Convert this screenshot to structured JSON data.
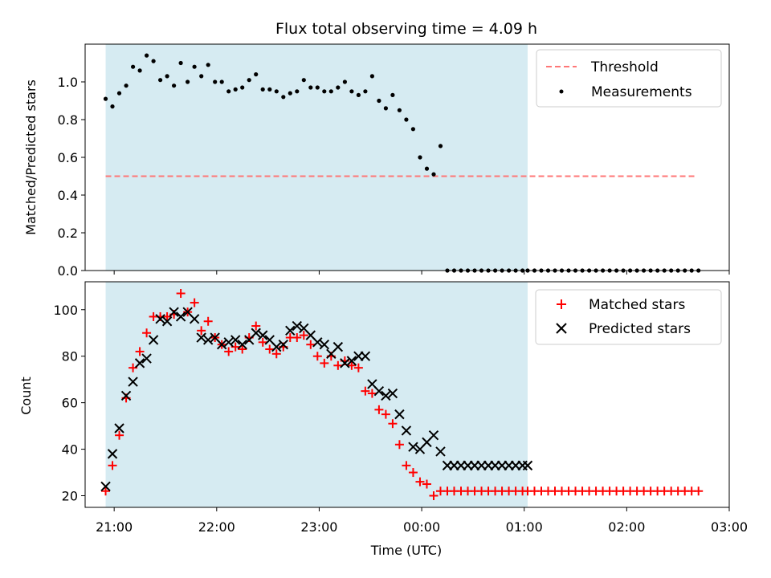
{
  "chart_data": [
    {
      "type": "scatter",
      "title": "Flux total observing time = 4.09 h",
      "xlabel": "",
      "ylabel": "Matched/Predicted stars",
      "xlim": [
        "20:43",
        "03:00"
      ],
      "ylim": [
        0,
        1.2
      ],
      "yticks": [
        "0.0",
        "0.2",
        "0.4",
        "0.6",
        "0.8",
        "1.0"
      ],
      "shaded_span": [
        "20:55",
        "01:02"
      ],
      "threshold": {
        "name": "Threshold",
        "value": 0.5,
        "range": [
          "20:55",
          "02:41"
        ],
        "color": "#ff7777"
      },
      "legend": {
        "position": "top-right",
        "entries": [
          "Threshold",
          "Measurements"
        ]
      },
      "series": [
        {
          "name": "Measurements",
          "color": "#000000",
          "x": [
            "20:55",
            "20:59",
            "21:03",
            "21:07",
            "21:11",
            "21:15",
            "21:19",
            "21:23",
            "21:27",
            "21:31",
            "21:35",
            "21:39",
            "21:43",
            "21:47",
            "21:51",
            "21:55",
            "21:59",
            "22:03",
            "22:07",
            "22:11",
            "22:15",
            "22:19",
            "22:23",
            "22:27",
            "22:31",
            "22:35",
            "22:39",
            "22:43",
            "22:47",
            "22:51",
            "22:55",
            "22:59",
            "23:03",
            "23:07",
            "23:11",
            "23:15",
            "23:19",
            "23:23",
            "23:27",
            "23:31",
            "23:35",
            "23:39",
            "23:43",
            "23:47",
            "23:51",
            "23:55",
            "23:59",
            "00:03",
            "00:07",
            "00:11",
            "00:15",
            "00:19",
            "00:23",
            "00:27",
            "00:31",
            "00:35",
            "00:39",
            "00:43",
            "00:47",
            "00:51",
            "00:55",
            "00:59",
            "01:02",
            "01:06",
            "01:10",
            "01:14",
            "01:18",
            "01:22",
            "01:26",
            "01:30",
            "01:34",
            "01:38",
            "01:42",
            "01:46",
            "01:50",
            "01:54",
            "01:58",
            "02:02",
            "02:06",
            "02:10",
            "02:14",
            "02:18",
            "02:22",
            "02:26",
            "02:30",
            "02:34",
            "02:38",
            "02:42"
          ],
          "y": [
            0.91,
            0.87,
            0.94,
            0.98,
            1.08,
            1.06,
            1.14,
            1.11,
            1.01,
            1.03,
            0.98,
            1.1,
            1.0,
            1.08,
            1.03,
            1.09,
            1.0,
            1.0,
            0.95,
            0.96,
            0.97,
            1.01,
            1.04,
            0.96,
            0.96,
            0.95,
            0.92,
            0.94,
            0.95,
            1.01,
            0.97,
            0.97,
            0.95,
            0.95,
            0.97,
            1.0,
            0.95,
            0.93,
            0.95,
            1.03,
            0.9,
            0.86,
            0.93,
            0.85,
            0.8,
            0.75,
            0.6,
            0.54,
            0.51,
            0.66,
            0.0,
            0.0,
            0.0,
            0.0,
            0.0,
            0.0,
            0.0,
            0.0,
            0.0,
            0.0,
            0.0,
            0.0,
            0.0,
            0.0,
            0.0,
            0.0,
            0.0,
            0.0,
            0.0,
            0.0,
            0.0,
            0.0,
            0.0,
            0.0,
            0.0,
            0.0,
            0.0,
            0.0,
            0.0,
            0.0,
            0.0,
            0.0,
            0.0,
            0.0,
            0.0,
            0.0,
            0.0,
            0.0
          ]
        }
      ]
    },
    {
      "type": "scatter",
      "title": "",
      "xlabel": "Time (UTC)",
      "ylabel": "Count",
      "xlim": [
        "20:43",
        "03:00"
      ],
      "ylim": [
        15,
        112
      ],
      "xticks": [
        "21:00",
        "22:00",
        "23:00",
        "00:00",
        "01:00",
        "02:00",
        "03:00"
      ],
      "yticks": [
        "20",
        "40",
        "60",
        "80",
        "100"
      ],
      "shaded_span": [
        "20:55",
        "01:02"
      ],
      "legend": {
        "position": "top-right",
        "entries": [
          "Matched stars",
          "Predicted stars"
        ]
      },
      "series": [
        {
          "name": "Matched stars",
          "marker": "+",
          "color": "#ff0000",
          "x": [
            "20:55",
            "20:59",
            "21:03",
            "21:07",
            "21:11",
            "21:15",
            "21:19",
            "21:23",
            "21:27",
            "21:31",
            "21:35",
            "21:39",
            "21:43",
            "21:47",
            "21:51",
            "21:55",
            "21:59",
            "22:03",
            "22:07",
            "22:11",
            "22:15",
            "22:19",
            "22:23",
            "22:27",
            "22:31",
            "22:35",
            "22:39",
            "22:43",
            "22:47",
            "22:51",
            "22:55",
            "22:59",
            "23:03",
            "23:07",
            "23:11",
            "23:15",
            "23:19",
            "23:23",
            "23:27",
            "23:31",
            "23:35",
            "23:39",
            "23:43",
            "23:47",
            "23:51",
            "23:55",
            "23:59",
            "00:03",
            "00:07",
            "00:11",
            "00:15",
            "00:19",
            "00:23",
            "00:27",
            "00:31",
            "00:35",
            "00:39",
            "00:43",
            "00:47",
            "00:51",
            "00:55",
            "00:59",
            "01:02",
            "01:06",
            "01:10",
            "01:14",
            "01:18",
            "01:22",
            "01:26",
            "01:30",
            "01:34",
            "01:38",
            "01:42",
            "01:46",
            "01:50",
            "01:54",
            "01:58",
            "02:02",
            "02:06",
            "02:10",
            "02:14",
            "02:18",
            "02:22",
            "02:26",
            "02:30",
            "02:34",
            "02:38",
            "02:42"
          ],
          "y": [
            22,
            33,
            46,
            62,
            75,
            82,
            90,
            97,
            97,
            97,
            98,
            107,
            99,
            103,
            91,
            95,
            88,
            85,
            82,
            84,
            83,
            88,
            93,
            86,
            83,
            81,
            84,
            88,
            88,
            89,
            85,
            80,
            77,
            80,
            76,
            78,
            76,
            75,
            65,
            64,
            57,
            55,
            51,
            42,
            33,
            30,
            26,
            25,
            20,
            22,
            22,
            22,
            22,
            22,
            22,
            22,
            22,
            22,
            22,
            22,
            22,
            22,
            22,
            22,
            22,
            22,
            22,
            22,
            22,
            22,
            22,
            22,
            22,
            22,
            22,
            22,
            22,
            22,
            22,
            22,
            22,
            22,
            22,
            22,
            22,
            22,
            22,
            22
          ]
        },
        {
          "name": "Predicted stars",
          "marker": "x",
          "color": "#000000",
          "x": [
            "20:55",
            "20:59",
            "21:03",
            "21:07",
            "21:11",
            "21:15",
            "21:19",
            "21:23",
            "21:27",
            "21:31",
            "21:35",
            "21:39",
            "21:43",
            "21:47",
            "21:51",
            "21:55",
            "21:59",
            "22:03",
            "22:07",
            "22:11",
            "22:15",
            "22:19",
            "22:23",
            "22:27",
            "22:31",
            "22:35",
            "22:39",
            "22:43",
            "22:47",
            "22:51",
            "22:55",
            "22:59",
            "23:03",
            "23:07",
            "23:11",
            "23:15",
            "23:19",
            "23:23",
            "23:27",
            "23:31",
            "23:35",
            "23:39",
            "23:43",
            "23:47",
            "23:51",
            "23:55",
            "23:59",
            "00:03",
            "00:07",
            "00:11",
            "00:15",
            "00:19",
            "00:23",
            "00:27",
            "00:31",
            "00:35",
            "00:39",
            "00:43",
            "00:47",
            "00:51",
            "00:55",
            "00:59",
            "01:02"
          ],
          "y": [
            24,
            38,
            49,
            63,
            69,
            77,
            79,
            87,
            96,
            95,
            99,
            97,
            99,
            96,
            88,
            87,
            88,
            85,
            86,
            87,
            85,
            87,
            90,
            89,
            87,
            84,
            85,
            91,
            93,
            92,
            89,
            86,
            85,
            81,
            84,
            77,
            78,
            80,
            80,
            68,
            65,
            63,
            64,
            55,
            48,
            41,
            40,
            43,
            46,
            39,
            33,
            33,
            33,
            33,
            33,
            33,
            33,
            33,
            33,
            33,
            33,
            33,
            33
          ]
        }
      ]
    }
  ]
}
